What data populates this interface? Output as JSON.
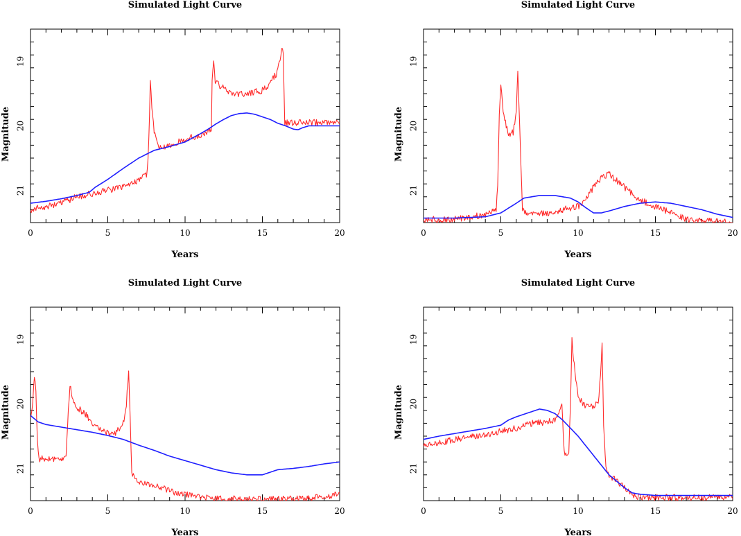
{
  "figure": {
    "colors": {
      "red": "#ff2a2a",
      "blue": "#1f1fff",
      "axes": "#000000",
      "background": "#ffffff"
    }
  },
  "chart_data": [
    {
      "type": "line",
      "title": "Simulated Light Curve",
      "xlabel": "Years",
      "ylabel": "Magnitude",
      "xlim": [
        0,
        20
      ],
      "ylim": [
        21.5,
        18.5
      ],
      "y_inverted": true,
      "xticks": [
        0,
        5,
        10,
        15,
        20
      ],
      "xtick_labels": [
        "0",
        "5",
        "10",
        "15",
        "20"
      ],
      "yticks": [
        19,
        20,
        21
      ],
      "ytick_labels": [
        "19",
        "20",
        "21"
      ],
      "series": [
        {
          "name": "red curve",
          "color": "#ff2a2a",
          "noise": 0.05,
          "x": [
            0,
            1,
            2,
            3,
            4,
            5,
            6,
            7,
            7.5,
            7.6,
            7.7,
            7.75,
            7.85,
            8.0,
            8.2,
            8.5,
            9.0,
            10.0,
            11.0,
            11.7,
            11.75,
            11.85,
            11.95,
            12.1,
            12.4,
            13.0,
            14.0,
            15.0,
            15.5,
            16.0,
            16.25,
            16.35,
            16.4,
            16.45,
            17.0,
            18.0,
            19.0,
            20.0
          ],
          "y": [
            21.3,
            21.25,
            21.2,
            21.1,
            21.05,
            21.0,
            20.95,
            20.85,
            20.75,
            20.55,
            19.8,
            19.3,
            19.7,
            20.1,
            20.3,
            20.35,
            20.3,
            20.2,
            20.15,
            20.05,
            19.3,
            19.0,
            19.3,
            19.35,
            19.4,
            19.5,
            19.5,
            19.45,
            19.35,
            19.15,
            18.8,
            18.85,
            19.4,
            19.95,
            19.95,
            19.95,
            19.95,
            19.95
          ]
        },
        {
          "name": "blue curve",
          "color": "#1f1fff",
          "noise": 0,
          "x": [
            0,
            1,
            2,
            3,
            3.8,
            4.2,
            5,
            6,
            7,
            8,
            9,
            10,
            11,
            11.5,
            12,
            12.5,
            13,
            13.5,
            14,
            14.5,
            15,
            15.5,
            16,
            16.5,
            17,
            17.3,
            17.6,
            18,
            19,
            20
          ],
          "y": [
            21.2,
            21.17,
            21.13,
            21.08,
            21.03,
            20.95,
            20.83,
            20.66,
            20.5,
            20.38,
            20.32,
            20.25,
            20.12,
            20.05,
            19.97,
            19.9,
            19.84,
            19.81,
            19.8,
            19.82,
            19.86,
            19.9,
            19.96,
            20.0,
            20.05,
            20.06,
            20.03,
            20.0,
            20.0,
            20.0
          ]
        }
      ]
    },
    {
      "type": "line",
      "title": "Simulated Light Curve",
      "xlabel": "Years",
      "ylabel": "Magnitude",
      "xlim": [
        0,
        20
      ],
      "ylim": [
        21.5,
        18.5
      ],
      "y_inverted": true,
      "xticks": [
        0,
        5,
        10,
        15,
        20
      ],
      "xtick_labels": [
        "0",
        "5",
        "10",
        "15",
        "20"
      ],
      "yticks": [
        19,
        20,
        21
      ],
      "ytick_labels": [
        "19",
        "20",
        "21"
      ],
      "series": [
        {
          "name": "red curve",
          "color": "#ff2a2a",
          "noise": 0.05,
          "x": [
            0,
            2,
            4,
            4.7,
            4.8,
            4.9,
            5.0,
            5.1,
            5.25,
            5.5,
            5.8,
            6.0,
            6.1,
            6.2,
            6.3,
            6.4,
            6.5,
            7,
            8,
            9,
            10,
            10.5,
            11,
            11.5,
            12,
            12.5,
            13,
            14,
            15,
            16,
            17,
            18,
            19,
            20
          ],
          "y": [
            21.45,
            21.45,
            21.38,
            21.3,
            20.9,
            19.8,
            19.35,
            19.65,
            19.9,
            20.15,
            20.1,
            19.8,
            19.2,
            19.9,
            20.6,
            21.3,
            21.35,
            21.35,
            21.35,
            21.3,
            21.25,
            21.15,
            20.95,
            20.8,
            20.75,
            20.85,
            20.95,
            21.15,
            21.25,
            21.35,
            21.45,
            21.48,
            21.48,
            21.5
          ]
        },
        {
          "name": "blue curve",
          "color": "#1f1fff",
          "noise": 0,
          "x": [
            0,
            2,
            3,
            4,
            5,
            6,
            6.5,
            7,
            7.5,
            8,
            8.5,
            9,
            9.5,
            10,
            10.5,
            11,
            11.5,
            12,
            13,
            14,
            15,
            16,
            17,
            18,
            19,
            20
          ],
          "y": [
            21.43,
            21.43,
            21.42,
            21.41,
            21.35,
            21.2,
            21.12,
            21.1,
            21.08,
            21.08,
            21.08,
            21.1,
            21.12,
            21.18,
            21.27,
            21.35,
            21.35,
            21.32,
            21.25,
            21.2,
            21.18,
            21.2,
            21.25,
            21.3,
            21.37,
            21.42
          ]
        }
      ]
    },
    {
      "type": "line",
      "title": "Simulated Light Curve",
      "xlabel": "Years",
      "ylabel": "Magnitude",
      "xlim": [
        0,
        20
      ],
      "ylim": [
        21.5,
        18.5
      ],
      "y_inverted": true,
      "xticks": [
        0,
        5,
        10,
        15,
        20
      ],
      "xtick_labels": [
        "0",
        "5",
        "10",
        "15",
        "20"
      ],
      "yticks": [
        19,
        20,
        21
      ],
      "ytick_labels": [
        "19",
        "20",
        "21"
      ],
      "series": [
        {
          "name": "red curve",
          "color": "#ff2a2a",
          "noise": 0.05,
          "x": [
            0,
            0.1,
            0.25,
            0.35,
            0.45,
            0.55,
            1,
            2,
            2.3,
            2.4,
            2.55,
            2.7,
            3,
            3.5,
            4,
            4.5,
            5,
            5.5,
            6.0,
            6.2,
            6.35,
            6.45,
            6.55,
            7,
            8,
            9,
            10,
            11,
            12,
            14,
            16,
            18,
            20
          ],
          "y": [
            20.2,
            20.1,
            19.6,
            19.8,
            20.6,
            20.85,
            20.85,
            20.85,
            20.85,
            20.3,
            19.7,
            19.9,
            20.05,
            20.15,
            20.3,
            20.4,
            20.45,
            20.45,
            20.3,
            20.0,
            19.5,
            20.2,
            21.1,
            21.2,
            21.25,
            21.35,
            21.4,
            21.45,
            21.47,
            21.48,
            21.48,
            21.47,
            21.4
          ]
        },
        {
          "name": "blue curve",
          "color": "#1f1fff",
          "noise": 0,
          "x": [
            0,
            0.5,
            1,
            2,
            3,
            4,
            5,
            6,
            7,
            8,
            9,
            10,
            11,
            12,
            13,
            14,
            15,
            15.5,
            16,
            17,
            18,
            19,
            20
          ],
          "y": [
            20.18,
            20.28,
            20.32,
            20.36,
            20.4,
            20.44,
            20.49,
            20.55,
            20.64,
            20.72,
            20.81,
            20.88,
            20.95,
            21.02,
            21.07,
            21.1,
            21.1,
            21.06,
            21.02,
            21.0,
            20.97,
            20.93,
            20.9
          ]
        }
      ]
    },
    {
      "type": "line",
      "title": "Simulated Light Curve",
      "xlabel": "Years",
      "ylabel": "Magnitude",
      "xlim": [
        0,
        20
      ],
      "ylim": [
        21.5,
        18.5
      ],
      "y_inverted": true,
      "xticks": [
        0,
        5,
        10,
        15,
        20
      ],
      "xtick_labels": [
        "0",
        "5",
        "10",
        "15",
        "20"
      ],
      "yticks": [
        19,
        20,
        21
      ],
      "ytick_labels": [
        "19",
        "20",
        "21"
      ],
      "series": [
        {
          "name": "red curve",
          "color": "#ff2a2a",
          "noise": 0.05,
          "x": [
            0,
            1,
            2,
            3,
            4,
            5,
            6,
            7,
            8,
            8.5,
            8.8,
            8.95,
            9.1,
            9.4,
            9.5,
            9.6,
            9.7,
            9.85,
            10.0,
            10.5,
            11.0,
            11.3,
            11.45,
            11.55,
            11.65,
            11.8,
            12.0,
            12.5,
            13.0,
            13.5,
            14.0,
            15.0,
            17.0,
            20.0
          ],
          "y": [
            20.63,
            20.6,
            20.56,
            20.52,
            20.48,
            20.42,
            20.38,
            20.3,
            20.28,
            20.25,
            20.15,
            20.0,
            20.75,
            20.8,
            20.0,
            19.0,
            19.3,
            19.6,
            19.9,
            20.05,
            20.05,
            19.95,
            19.6,
            19.1,
            20.3,
            21.0,
            21.1,
            21.2,
            21.3,
            21.4,
            21.45,
            21.45,
            21.45,
            21.45
          ]
        },
        {
          "name": "blue curve",
          "color": "#1f1fff",
          "noise": 0,
          "x": [
            0,
            1,
            2,
            3,
            4,
            5,
            5.5,
            6,
            7,
            7.5,
            8,
            8.5,
            9,
            10,
            11,
            12,
            13,
            13.5,
            14,
            15,
            16,
            17,
            18,
            20
          ],
          "y": [
            20.55,
            20.5,
            20.46,
            20.42,
            20.38,
            20.33,
            20.25,
            20.2,
            20.12,
            20.08,
            20.1,
            20.15,
            20.25,
            20.5,
            20.8,
            21.1,
            21.3,
            21.38,
            21.4,
            21.42,
            21.42,
            21.42,
            21.42,
            21.42
          ]
        }
      ]
    }
  ]
}
